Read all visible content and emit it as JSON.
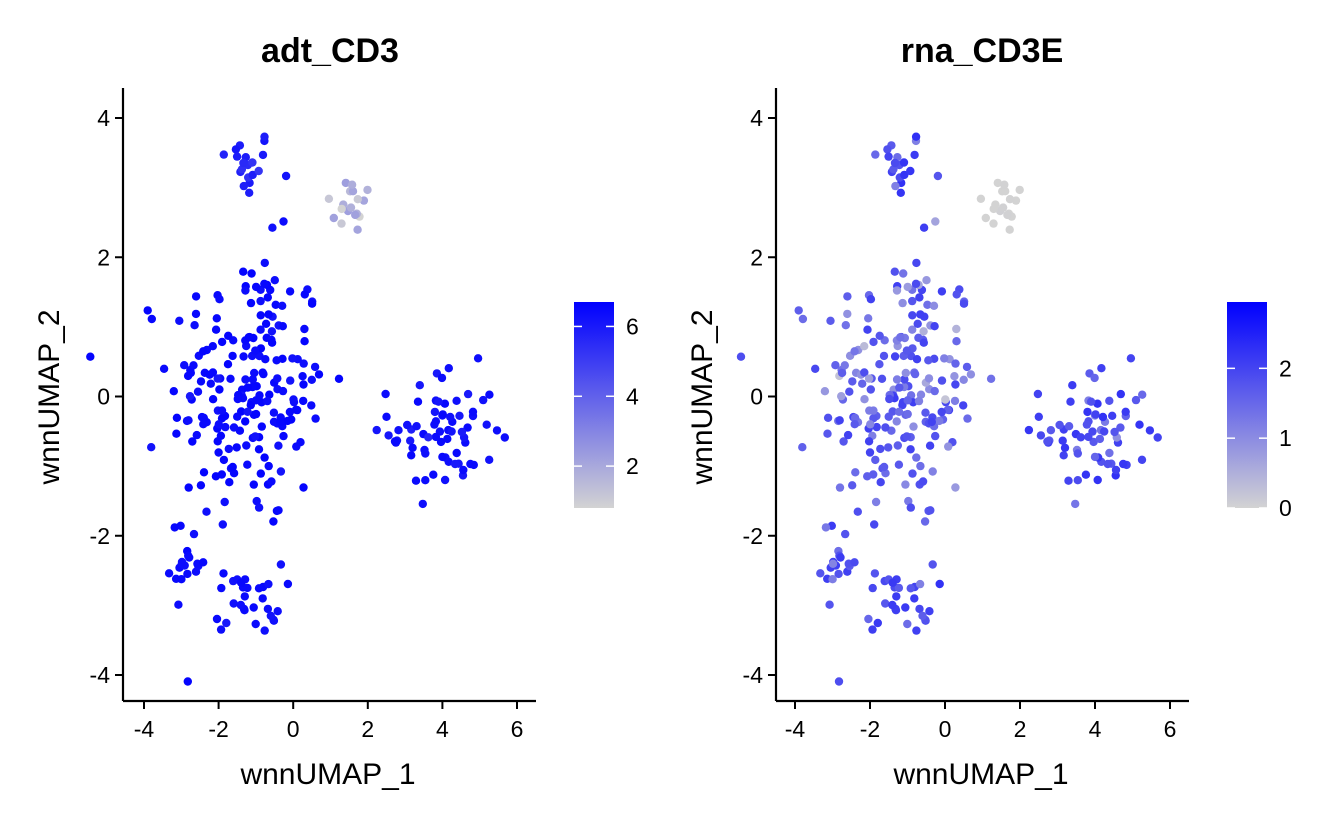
{
  "colors": {
    "low": "#d3d3d3",
    "high": "#0000ff"
  },
  "chart_data": [
    {
      "type": "scatter",
      "title": "adt_CD3",
      "xlabel": "wnnUMAP_1",
      "ylabel": "wnnUMAP_2",
      "xlim": [
        -4.5,
        6.5
      ],
      "ylim": [
        -4.4,
        4.4
      ],
      "xticks": [
        -4,
        -2,
        0,
        2,
        4,
        6
      ],
      "xtick_labels": [
        "-4",
        "-2",
        "0",
        "2",
        "4",
        "6"
      ],
      "yticks": [
        -4,
        -2,
        0,
        2,
        4
      ],
      "ytick_labels": [
        "-4",
        "-2",
        "0",
        "2",
        "4"
      ],
      "legend": {
        "position": "right",
        "range": [
          0.8,
          6.7
        ],
        "ticks": [
          2,
          4,
          6
        ],
        "tick_labels": [
          "2",
          "4",
          "6"
        ]
      },
      "clusters": [
        {
          "cx": -1.3,
          "cy": 3.35,
          "sx": 0.4,
          "sy": 0.25,
          "n": 20,
          "value": 6.2,
          "spread": 0.5
        },
        {
          "cx": 1.6,
          "cy": 2.75,
          "sx": 0.35,
          "sy": 0.22,
          "n": 18,
          "value": 2.3,
          "spread": 1.2
        },
        {
          "cx": -1.2,
          "cy": 0.1,
          "sx": 1.05,
          "sy": 1.0,
          "n": 210,
          "value": 6.6,
          "spread": 0.2
        },
        {
          "cx": 4.0,
          "cy": -0.5,
          "sx": 0.7,
          "sy": 0.45,
          "n": 70,
          "value": 6.5,
          "spread": 0.25
        },
        {
          "cx": -2.8,
          "cy": -2.4,
          "sx": 0.25,
          "sy": 0.3,
          "n": 18,
          "value": 6.5,
          "spread": 0.2
        },
        {
          "cx": -1.2,
          "cy": -2.9,
          "sx": 0.45,
          "sy": 0.25,
          "n": 30,
          "value": 6.5,
          "spread": 0.2
        }
      ]
    },
    {
      "type": "scatter",
      "title": "rna_CD3E",
      "xlabel": "wnnUMAP_1",
      "ylabel": "wnnUMAP_2",
      "xlim": [
        -4.5,
        6.5
      ],
      "ylim": [
        -4.4,
        4.4
      ],
      "xticks": [
        -4,
        -2,
        0,
        2,
        4,
        6
      ],
      "xtick_labels": [
        "-4",
        "-2",
        "0",
        "2",
        "4",
        "6"
      ],
      "yticks": [
        -4,
        -2,
        0,
        2,
        4
      ],
      "ytick_labels": [
        "-4",
        "-2",
        "0",
        "2",
        "4"
      ],
      "legend": {
        "position": "right",
        "range": [
          0,
          2.95
        ],
        "ticks": [
          0,
          1,
          2
        ],
        "tick_labels": [
          "0",
          "1",
          "2"
        ]
      },
      "clusters": [
        {
          "cx": -1.3,
          "cy": 3.35,
          "sx": 0.4,
          "sy": 0.25,
          "n": 20,
          "value": 2.3,
          "spread": 0.6
        },
        {
          "cx": 1.6,
          "cy": 2.75,
          "sx": 0.35,
          "sy": 0.22,
          "n": 18,
          "value": 0.05,
          "spread": 0.1
        },
        {
          "cx": -1.2,
          "cy": 0.1,
          "sx": 1.05,
          "sy": 1.0,
          "n": 210,
          "value": 2.1,
          "spread": 0.7
        },
        {
          "cx": 4.0,
          "cy": -0.5,
          "sx": 0.7,
          "sy": 0.45,
          "n": 70,
          "value": 2.3,
          "spread": 0.5
        },
        {
          "cx": -2.8,
          "cy": -2.4,
          "sx": 0.25,
          "sy": 0.3,
          "n": 18,
          "value": 2.2,
          "spread": 0.5
        },
        {
          "cx": -1.2,
          "cy": -2.9,
          "sx": 0.45,
          "sy": 0.25,
          "n": 30,
          "value": 2.3,
          "spread": 0.5
        }
      ]
    }
  ]
}
